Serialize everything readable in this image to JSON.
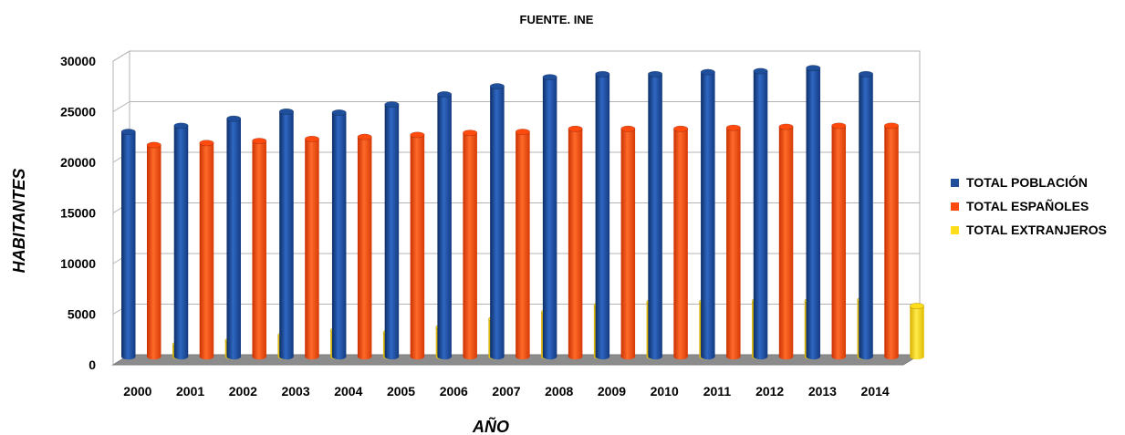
{
  "chart_data": {
    "type": "bar",
    "title": "FUENTE. INE",
    "xlabel": "AÑO",
    "ylabel": "HABITANTES",
    "ylim": [
      0,
      30000
    ],
    "yticks": [
      "0",
      "5000",
      "10000",
      "15000",
      "20000",
      "25000",
      "30000"
    ],
    "grid": true,
    "legend_position": "right",
    "categories": [
      "2000",
      "2001",
      "2002",
      "2003",
      "2004",
      "2005",
      "2006",
      "2007",
      "2008",
      "2009",
      "2010",
      "2011",
      "2012",
      "2013",
      "2014"
    ],
    "series": [
      {
        "name": "TOTAL POBLACIÓN",
        "color": "#1f4e9b",
        "values": [
          22200,
          22800,
          23500,
          24200,
          24100,
          24900,
          25900,
          26700,
          27600,
          27900,
          27900,
          28100,
          28200,
          28500,
          27900
        ]
      },
      {
        "name": "TOTAL ESPAÑOLES",
        "color": "#ff4a0f",
        "values": [
          20900,
          21100,
          21300,
          21500,
          21700,
          21900,
          22100,
          22200,
          22500,
          22500,
          22500,
          22600,
          22700,
          22800,
          22800
        ]
      },
      {
        "name": "TOTAL EXTRANJEROS",
        "color": "#ffdd1a",
        "values": [
          1200,
          1600,
          2100,
          2600,
          2400,
          2900,
          3700,
          4400,
          5100,
          5400,
          5400,
          5500,
          5500,
          5600,
          5000
        ]
      }
    ]
  }
}
